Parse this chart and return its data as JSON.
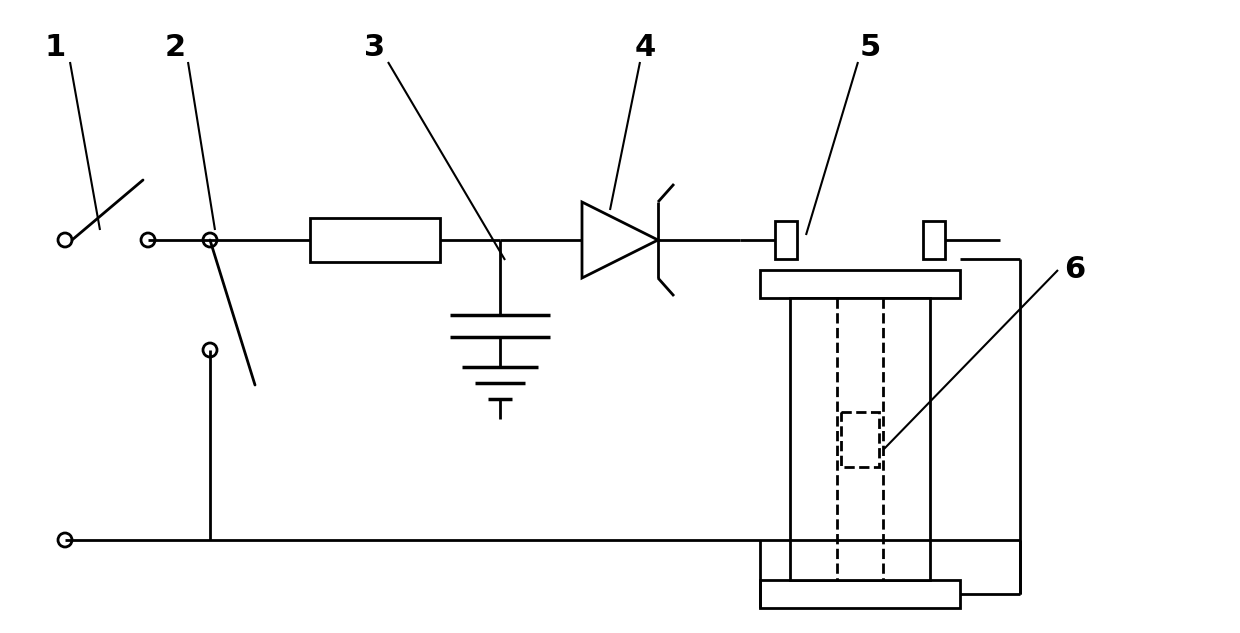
{
  "background": "#ffffff",
  "line_color": "#000000",
  "lw": 2.0,
  "lw_thin": 1.5,
  "fig_w": 12.4,
  "fig_h": 6.33,
  "dpi": 100
}
